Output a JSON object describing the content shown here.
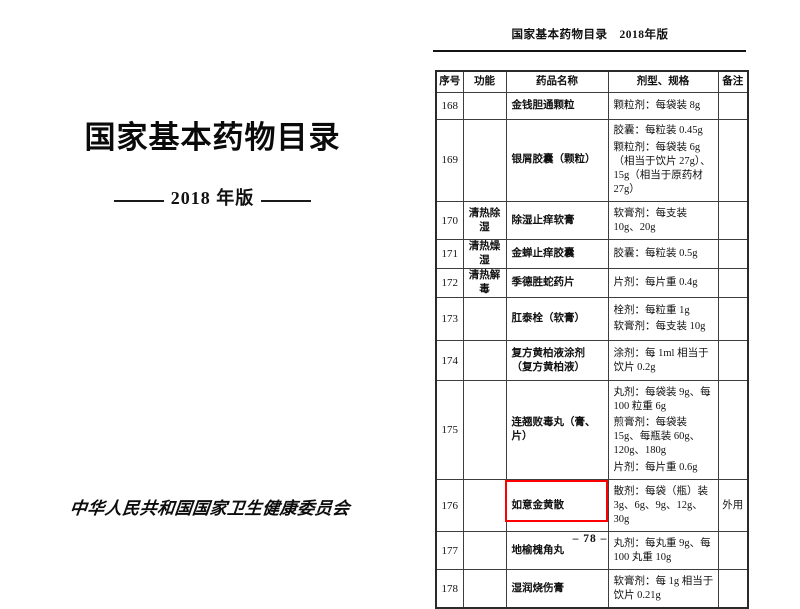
{
  "left_page": {
    "title": "国家基本药物目录",
    "edition": "2018 年版",
    "publisher": "中华人民共和国国家卫生健康委员会"
  },
  "right_page": {
    "header": "国家基本药物目录　2018年版",
    "page_number": "– 78 –",
    "highlight_color": "#ff0000",
    "table": {
      "headers": [
        "序号",
        "功能",
        "药品名称",
        "剂型、规格",
        "备注"
      ],
      "rows": [
        {
          "no": "168",
          "function": "",
          "name": "金钱胆通颗粒",
          "spec": [
            "颗粒剂：每袋装 8g"
          ],
          "note": "",
          "highlighted": false
        },
        {
          "no": "169",
          "function": "",
          "name": "银屑胶囊（颗粒）",
          "spec": [
            "胶囊：每粒装 0.45g",
            "颗粒剂：每袋装 6g（相当于饮片 27g）、15g（相当于原药材 27g）"
          ],
          "note": "",
          "highlighted": false
        },
        {
          "no": "170",
          "function": "清热除湿",
          "name": "除湿止痒软膏",
          "spec": [
            "软膏剂：每支装 10g、20g"
          ],
          "note": "",
          "highlighted": false
        },
        {
          "no": "171",
          "function": "清热燥湿",
          "name": "金蝉止痒胶囊",
          "spec": [
            "胶囊：每粒装 0.5g"
          ],
          "note": "",
          "highlighted": false
        },
        {
          "no": "172",
          "function": "清热解毒",
          "name": "季德胜蛇药片",
          "spec": [
            "片剂：每片重 0.4g"
          ],
          "note": "",
          "highlighted": false
        },
        {
          "no": "173",
          "function": "",
          "name": "肛泰栓（软膏）",
          "spec": [
            "栓剂：每粒重 1g",
            "软膏剂：每支装 10g"
          ],
          "note": "",
          "highlighted": false
        },
        {
          "no": "174",
          "function": "",
          "name": "复方黄柏液涂剂（复方黄柏液）",
          "spec": [
            "涂剂：每 1ml 相当于饮片 0.2g"
          ],
          "note": "",
          "highlighted": false
        },
        {
          "no": "175",
          "function": "",
          "name": "连翘败毒丸（膏、片）",
          "spec": [
            "丸剂：每袋装 9g、每 100 粒重 6g",
            "煎膏剂：每袋装 15g、每瓶装 60g、120g、180g",
            "片剂：每片重 0.6g"
          ],
          "note": "",
          "highlighted": false
        },
        {
          "no": "176",
          "function": "",
          "name": "如意金黄散",
          "spec": [
            "散剂：每袋（瓶）装 3g、6g、9g、12g、30g"
          ],
          "note": "外用",
          "highlighted": false
        },
        {
          "no": "177",
          "function": "",
          "name": "地榆槐角丸",
          "spec": [
            "丸剂：每丸重 9g、每 100 丸重 10g"
          ],
          "note": "",
          "highlighted": false
        },
        {
          "no": "178",
          "function": "",
          "name": "湿润烧伤膏",
          "spec": [
            "软膏剂：每 1g 相当于饮片 0.21g"
          ],
          "note": "",
          "highlighted": true
        }
      ]
    }
  }
}
